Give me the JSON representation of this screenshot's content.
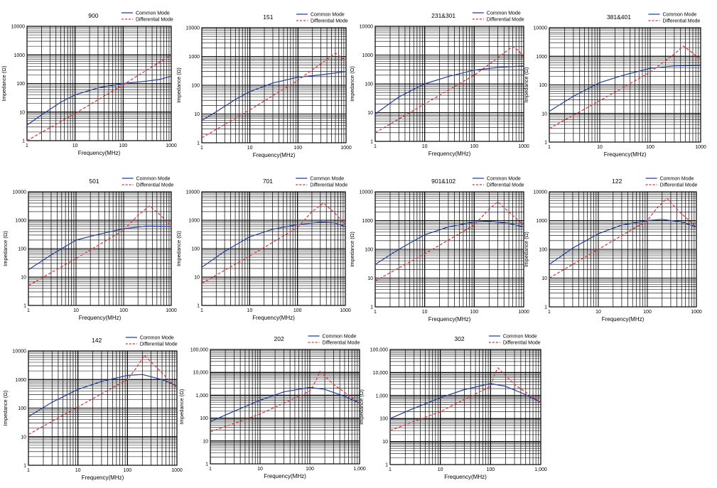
{
  "chart_data": [
    {
      "type": "line",
      "title": "900",
      "xlabel": "Frequency(MHz)",
      "ylabel": "Impedance (Ω)",
      "xlim": [
        1,
        1000
      ],
      "ylim": [
        1,
        10000
      ],
      "xscale": "log",
      "yscale": "log",
      "grid": true,
      "legend": "top-right",
      "xticks": [
        "1",
        "10",
        "100",
        "1000"
      ],
      "yticks": [
        "1",
        "10",
        "100",
        "1000",
        "10000"
      ],
      "series": [
        {
          "name": "Common Mode",
          "color": "#1f3fa0",
          "dash": false,
          "x": [
            1,
            2,
            5,
            10,
            30,
            100,
            300,
            600,
            1000
          ],
          "y": [
            3.5,
            8,
            22,
            40,
            70,
            100,
            120,
            140,
            180
          ]
        },
        {
          "name": "Differential Mode",
          "color": "#e03030",
          "dash": true,
          "x": [
            1,
            10,
            100,
            1000
          ],
          "y": [
            1,
            9,
            90,
            1000
          ]
        }
      ]
    },
    {
      "type": "line",
      "title": "151",
      "xlabel": "Frequency(MHz)",
      "ylabel": "Impedance (Ω)",
      "xlim": [
        1,
        1000
      ],
      "ylim": [
        1,
        10000
      ],
      "xscale": "log",
      "yscale": "log",
      "grid": true,
      "legend": "top-right",
      "xticks": [
        "1",
        "10",
        "100",
        "1000"
      ],
      "yticks": [
        "1",
        "10",
        "100",
        "1000",
        "10000"
      ],
      "series": [
        {
          "name": "Common Mode",
          "color": "#1f3fa0",
          "dash": false,
          "x": [
            1,
            2,
            5,
            10,
            30,
            100,
            300,
            1000
          ],
          "y": [
            6,
            12,
            32,
            60,
            120,
            190,
            230,
            300
          ]
        },
        {
          "name": "Differential Mode",
          "color": "#e03030",
          "dash": true,
          "x": [
            1,
            10,
            100,
            600,
            1000
          ],
          "y": [
            1.5,
            14,
            150,
            1300,
            700
          ]
        }
      ]
    },
    {
      "type": "line",
      "title": "231&301",
      "xlabel": "Frequency(MHz)",
      "ylabel": "Impedance (Ω)",
      "xlim": [
        1,
        1000
      ],
      "ylim": [
        1,
        10000
      ],
      "xscale": "log",
      "yscale": "log",
      "grid": true,
      "legend": "top-right",
      "xticks": [
        "1",
        "10",
        "100",
        "1000"
      ],
      "yticks": [
        "1",
        "10",
        "100",
        "1000",
        "10000"
      ],
      "series": [
        {
          "name": "Common Mode",
          "color": "#1f3fa0",
          "dash": false,
          "x": [
            1,
            3,
            10,
            30,
            100,
            300,
            1000
          ],
          "y": [
            9,
            35,
            100,
            180,
            300,
            370,
            420
          ]
        },
        {
          "name": "Differential Mode",
          "color": "#e03030",
          "dash": true,
          "x": [
            1,
            10,
            100,
            300,
            600,
            800,
            1000
          ],
          "y": [
            2,
            20,
            200,
            800,
            2000,
            1400,
            800
          ]
        }
      ]
    },
    {
      "type": "line",
      "title": "381&401",
      "xlabel": "Frequency(MHz)",
      "ylabel": "Impedance (Ω)",
      "xlim": [
        1,
        1000
      ],
      "ylim": [
        1,
        10000
      ],
      "xscale": "log",
      "yscale": "log",
      "grid": true,
      "legend": "top-right",
      "xticks": [
        "1",
        "10",
        "100",
        "1000"
      ],
      "yticks": [
        "1",
        "10",
        "100",
        "1000",
        "10000"
      ],
      "series": [
        {
          "name": "Common Mode",
          "color": "#1f3fa0",
          "dash": false,
          "x": [
            1,
            3,
            10,
            30,
            100,
            300,
            1000
          ],
          "y": [
            12,
            40,
            120,
            220,
            380,
            460,
            480
          ]
        },
        {
          "name": "Differential Mode",
          "color": "#e03030",
          "dash": true,
          "x": [
            1,
            10,
            100,
            300,
            450,
            700,
            1000
          ],
          "y": [
            3,
            28,
            280,
            1200,
            2300,
            1300,
            700
          ]
        }
      ]
    },
    {
      "type": "line",
      "title": "501",
      "xlabel": "Frequency(MHz)",
      "ylabel": "Impedance (Ω)",
      "xlim": [
        1,
        1000
      ],
      "ylim": [
        1,
        10000
      ],
      "xscale": "log",
      "yscale": "log",
      "grid": true,
      "legend": "top-right",
      "xticks": [
        "1",
        "10",
        "100",
        "1000"
      ],
      "yticks": [
        "1",
        "10",
        "100",
        "1000",
        "10000"
      ],
      "series": [
        {
          "name": "Common Mode",
          "color": "#1f3fa0",
          "dash": false,
          "x": [
            1,
            3,
            10,
            30,
            100,
            300,
            1000
          ],
          "y": [
            18,
            60,
            200,
            320,
            500,
            620,
            600
          ]
        },
        {
          "name": "Differential Mode",
          "color": "#e03030",
          "dash": true,
          "x": [
            1,
            10,
            100,
            200,
            350,
            600,
            1000
          ],
          "y": [
            5,
            45,
            450,
            1500,
            3200,
            1500,
            600
          ]
        }
      ]
    },
    {
      "type": "line",
      "title": "701",
      "xlabel": "Frequency(MHz)",
      "ylabel": "Impedance (Ω)",
      "xlim": [
        1,
        1000
      ],
      "ylim": [
        1,
        10000
      ],
      "xscale": "log",
      "yscale": "log",
      "grid": true,
      "legend": "top-right",
      "xticks": [
        "1",
        "10",
        "100",
        "1000"
      ],
      "yticks": [
        "1",
        "10",
        "100",
        "1000",
        "10000"
      ],
      "series": [
        {
          "name": "Common Mode",
          "color": "#1f3fa0",
          "dash": false,
          "x": [
            1,
            3,
            10,
            30,
            100,
            300,
            600,
            1000
          ],
          "y": [
            22,
            80,
            260,
            480,
            700,
            850,
            800,
            600
          ]
        },
        {
          "name": "Differential Mode",
          "color": "#e03030",
          "dash": true,
          "x": [
            1,
            10,
            100,
            200,
            350,
            600,
            1000
          ],
          "y": [
            6,
            55,
            550,
            2000,
            4000,
            1800,
            700
          ]
        }
      ]
    },
    {
      "type": "line",
      "title": "901&102",
      "xlabel": "Frequency(MHz)",
      "ylabel": "Impedance (Ω)",
      "xlim": [
        1,
        1000
      ],
      "ylim": [
        1,
        10000
      ],
      "xscale": "log",
      "yscale": "log",
      "grid": true,
      "legend": "top-right",
      "xticks": [
        "1",
        "10",
        "100",
        "1000"
      ],
      "yticks": [
        "1",
        "10",
        "100",
        "1000",
        "10000"
      ],
      "series": [
        {
          "name": "Common Mode",
          "color": "#1f3fa0",
          "dash": false,
          "x": [
            1,
            3,
            10,
            30,
            100,
            200,
            500,
            1000
          ],
          "y": [
            30,
            100,
            320,
            600,
            900,
            950,
            800,
            600
          ]
        },
        {
          "name": "Differential Mode",
          "color": "#e03030",
          "dash": true,
          "x": [
            1,
            10,
            100,
            200,
            300,
            500,
            1000
          ],
          "y": [
            8,
            70,
            700,
            2500,
            4500,
            2000,
            700
          ]
        }
      ]
    },
    {
      "type": "line",
      "title": "122",
      "xlabel": "Frequency(MHz)",
      "ylabel": "Impedance (Ω)",
      "xlim": [
        1,
        1000
      ],
      "ylim": [
        1,
        10000
      ],
      "xscale": "log",
      "yscale": "log",
      "grid": true,
      "legend": "top-right",
      "xticks": [
        "1",
        "10",
        "100",
        "1000"
      ],
      "yticks": [
        "1",
        "10",
        "100",
        "1000",
        "10000"
      ],
      "series": [
        {
          "name": "Common Mode",
          "color": "#1f3fa0",
          "dash": false,
          "x": [
            1,
            3,
            10,
            30,
            100,
            200,
            500,
            1000
          ],
          "y": [
            30,
            110,
            350,
            700,
            1000,
            1100,
            900,
            600
          ]
        },
        {
          "name": "Differential Mode",
          "color": "#e03030",
          "dash": true,
          "x": [
            1,
            10,
            100,
            150,
            250,
            450,
            1000
          ],
          "y": [
            10,
            100,
            1000,
            2500,
            6000,
            2000,
            600
          ]
        }
      ]
    },
    {
      "type": "line",
      "title": "142",
      "xlabel": "Frequency(MHz)",
      "ylabel": "Impedance (Ω)",
      "xlim": [
        1,
        1000
      ],
      "ylim": [
        1,
        10000
      ],
      "xscale": "log",
      "yscale": "log",
      "grid": true,
      "legend": "top-right",
      "xticks": [
        "1",
        "10",
        "100",
        "1000"
      ],
      "yticks": [
        "1",
        "10",
        "100",
        "1000",
        "10000"
      ],
      "series": [
        {
          "name": "Common Mode",
          "color": "#1f3fa0",
          "dash": false,
          "x": [
            1,
            3,
            10,
            30,
            100,
            200,
            500,
            1000
          ],
          "y": [
            50,
            160,
            450,
            850,
            1400,
            1500,
            1000,
            600
          ]
        },
        {
          "name": "Differential Mode",
          "color": "#e03030",
          "dash": true,
          "x": [
            1,
            10,
            100,
            150,
            220,
            400,
            1000
          ],
          "y": [
            12,
            110,
            1000,
            2500,
            7000,
            2500,
            500
          ]
        }
      ]
    },
    {
      "type": "line",
      "title": "202",
      "xlabel": "Frequency(MHz)",
      "ylabel": "Impedance (Ω)",
      "xlim": [
        1,
        1000
      ],
      "ylim": [
        1,
        100000
      ],
      "xscale": "log",
      "yscale": "log",
      "grid": true,
      "legend": "top-right",
      "xticks": [
        "1",
        "10",
        "100",
        "1,000"
      ],
      "yticks": [
        "1",
        "10",
        "100",
        "1,000",
        "10,000",
        "100,000"
      ],
      "series": [
        {
          "name": "Common Mode",
          "color": "#1f3fa0",
          "dash": false,
          "x": [
            1,
            3,
            10,
            30,
            100,
            200,
            500,
            1000
          ],
          "y": [
            70,
            200,
            600,
            1400,
            2200,
            1800,
            900,
            450
          ]
        },
        {
          "name": "Differential Mode",
          "color": "#e03030",
          "dash": true,
          "x": [
            1,
            10,
            100,
            130,
            160,
            300,
            1000
          ],
          "y": [
            25,
            150,
            1500,
            4000,
            11000,
            3000,
            450
          ]
        }
      ]
    },
    {
      "type": "line",
      "title": "302",
      "xlabel": "Frequency(MHz)",
      "ylabel": "Impedance (Ω)",
      "xlim": [
        1,
        1000
      ],
      "ylim": [
        1,
        100000
      ],
      "xscale": "log",
      "yscale": "log",
      "grid": true,
      "legend": "top-right",
      "xticks": [
        "1",
        "10",
        "100",
        "1,000"
      ],
      "yticks": [
        "1",
        "10",
        "100",
        "1,000",
        "10,000",
        "100,000"
      ],
      "series": [
        {
          "name": "Common Mode",
          "color": "#1f3fa0",
          "dash": false,
          "x": [
            1,
            3,
            10,
            30,
            100,
            200,
            500,
            1000
          ],
          "y": [
            100,
            280,
            800,
            1800,
            3300,
            2500,
            1100,
            500
          ]
        },
        {
          "name": "Differential Mode",
          "color": "#e03030",
          "dash": true,
          "x": [
            1,
            10,
            100,
            120,
            140,
            300,
            1000
          ],
          "y": [
            30,
            200,
            2500,
            8000,
            16000,
            3000,
            500
          ]
        }
      ]
    }
  ]
}
